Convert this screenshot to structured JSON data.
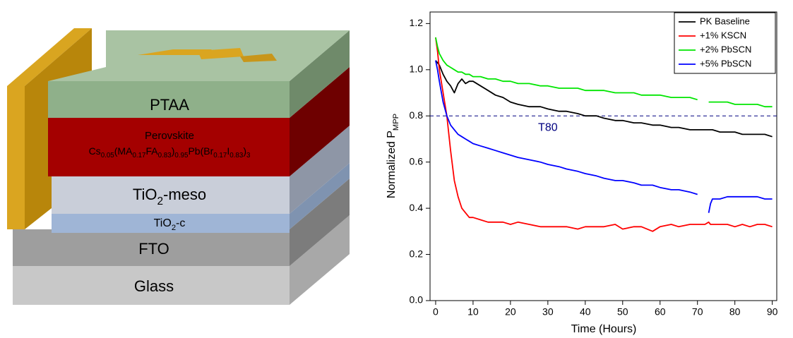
{
  "diagram": {
    "layers": [
      {
        "label": [
          "Glass"
        ]
      },
      {
        "label": [
          "FTO"
        ]
      },
      {
        "label": [
          "TiO",
          {
            "sub": "2"
          },
          "-c"
        ]
      },
      {
        "label": [
          "TiO",
          {
            "sub": "2"
          },
          "-meso"
        ]
      },
      {
        "label": [
          "Perovskite"
        ],
        "formula": [
          "Cs",
          {
            "sub": "0.05"
          },
          "(MA",
          {
            "sub": "0.17"
          },
          "FA",
          {
            "sub": "0.83"
          },
          ")",
          {
            "sub": "0.95"
          },
          "Pb(Br",
          {
            "sub": "0.17"
          },
          "I",
          {
            "sub": "0.83"
          },
          ")",
          {
            "sub": "3"
          }
        ]
      },
      {
        "label": [
          "PTAA"
        ]
      }
    ]
  },
  "chart_data": {
    "type": "line",
    "xlabel": "Time (Hours)",
    "ylabel": [
      "Normalized P",
      {
        "sub": "MPP"
      }
    ],
    "x": [
      0,
      0.5,
      1,
      2,
      3,
      4,
      5,
      6,
      7,
      8,
      9,
      10,
      12,
      14,
      16,
      18,
      20,
      22,
      25,
      28,
      30,
      33,
      35,
      38,
      40,
      43,
      45,
      48,
      50,
      53,
      55,
      58,
      60,
      63,
      65,
      68,
      70,
      70.5,
      72,
      73,
      73.5,
      74,
      76,
      78,
      80,
      82,
      84,
      86,
      88,
      90
    ],
    "series": [
      {
        "name": "PK Baseline",
        "color": "#000000",
        "values": [
          1.04,
          1.03,
          1.02,
          0.98,
          0.95,
          0.93,
          0.9,
          0.94,
          0.96,
          0.94,
          0.95,
          0.95,
          0.93,
          0.91,
          0.89,
          0.88,
          0.86,
          0.85,
          0.84,
          0.84,
          0.83,
          0.82,
          0.82,
          0.81,
          0.8,
          0.8,
          0.79,
          0.78,
          0.78,
          0.77,
          0.77,
          0.76,
          0.76,
          0.75,
          0.75,
          0.74,
          0.74,
          0.74,
          0.74,
          0.74,
          0.74,
          0.74,
          0.73,
          0.73,
          0.73,
          0.72,
          0.72,
          0.72,
          0.72,
          0.71
        ]
      },
      {
        "name": "+1% KSCN",
        "color": "#ff0000",
        "values": [
          1.14,
          1.08,
          1.0,
          0.9,
          0.8,
          0.65,
          0.52,
          0.45,
          0.4,
          0.38,
          0.36,
          0.36,
          0.35,
          0.34,
          0.34,
          0.34,
          0.33,
          0.34,
          0.33,
          0.32,
          0.32,
          0.32,
          0.32,
          0.31,
          0.32,
          0.32,
          0.32,
          0.33,
          0.31,
          0.32,
          0.32,
          0.3,
          0.32,
          0.33,
          0.32,
          0.33,
          0.33,
          0.33,
          0.33,
          0.34,
          0.33,
          0.33,
          0.33,
          0.33,
          0.32,
          0.33,
          0.32,
          0.33,
          0.33,
          0.32
        ]
      },
      {
        "name": "+2% PbSCN",
        "color": "#00e600",
        "values": [
          1.14,
          1.1,
          1.07,
          1.04,
          1.02,
          1.01,
          1.0,
          0.99,
          0.99,
          0.98,
          0.98,
          0.97,
          0.97,
          0.96,
          0.96,
          0.95,
          0.95,
          0.94,
          0.94,
          0.93,
          0.93,
          0.92,
          0.92,
          0.92,
          0.91,
          0.91,
          0.91,
          0.9,
          0.9,
          0.9,
          0.89,
          0.89,
          0.89,
          0.88,
          0.88,
          0.88,
          0.87,
          null,
          null,
          0.86,
          0.86,
          0.86,
          0.86,
          0.86,
          0.85,
          0.85,
          0.85,
          0.85,
          0.84,
          0.84
        ]
      },
      {
        "name": "+5% PbSCN",
        "color": "#0000ff",
        "values": [
          1.04,
          1.0,
          0.95,
          0.86,
          0.8,
          0.76,
          0.74,
          0.72,
          0.71,
          0.7,
          0.69,
          0.68,
          0.67,
          0.66,
          0.65,
          0.64,
          0.63,
          0.62,
          0.61,
          0.6,
          0.59,
          0.58,
          0.57,
          0.56,
          0.55,
          0.54,
          0.53,
          0.52,
          0.52,
          0.51,
          0.5,
          0.5,
          0.49,
          0.48,
          0.48,
          0.47,
          0.46,
          null,
          null,
          0.38,
          0.42,
          0.44,
          0.44,
          0.45,
          0.45,
          0.45,
          0.45,
          0.45,
          0.44,
          0.44
        ]
      }
    ],
    "reference_line": {
      "value": 0.8,
      "label": "T80",
      "color": "#000080"
    },
    "xlim": [
      -1.5,
      91.2
    ],
    "xticks": [
      0,
      10,
      20,
      30,
      40,
      50,
      60,
      70,
      80,
      90
    ],
    "ylim": [
      0,
      1.25
    ],
    "yticks": [
      {
        "value": 0,
        "label": "0.0"
      },
      0.2,
      0.4,
      0.6,
      0.8,
      {
        "value": 1,
        "label": "1.0"
      },
      1.2
    ],
    "legend": "upper right"
  }
}
